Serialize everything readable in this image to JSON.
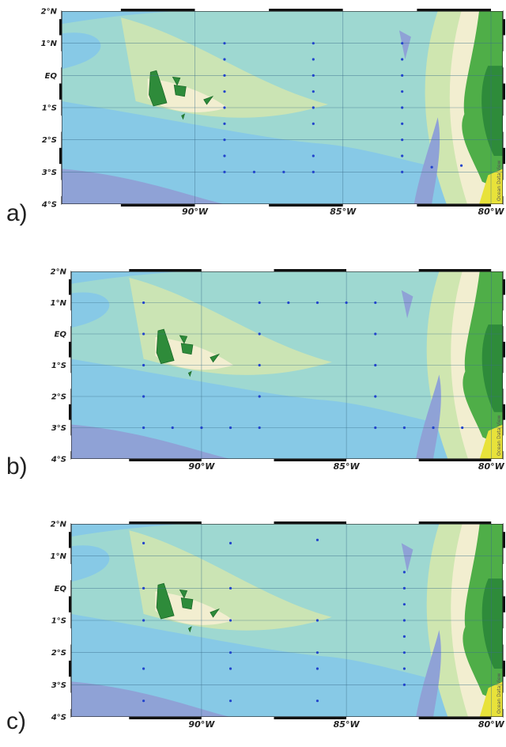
{
  "lat_labels": [
    "2°N",
    "1°N",
    "EQ",
    "1°S",
    "2°S",
    "3°S",
    "4°S"
  ],
  "lon_labels": [
    "90°W",
    "85°W",
    "80°W"
  ],
  "credit": "Ocean Data View",
  "colors": {
    "deep": "#8fa2d6",
    "mid": "#87c9e6",
    "shallow": "#9fd9d0",
    "green_light": "#cfe6b0",
    "cream": "#f2eed0",
    "land_dark": "#2e8b3a",
    "land_mid": "#4fae48",
    "land_light": "#8fcf6a",
    "yellow": "#e8e23a",
    "station": "#2244cc"
  },
  "panels": [
    {
      "label": "a)",
      "stations": [
        [
          -89,
          1
        ],
        [
          -89,
          0.5
        ],
        [
          -89,
          0
        ],
        [
          -89,
          -0.5
        ],
        [
          -89,
          -1
        ],
        [
          -89,
          -1.5
        ],
        [
          -89,
          -2
        ],
        [
          -89,
          -2.5
        ],
        [
          -89,
          -3
        ],
        [
          -86,
          1
        ],
        [
          -86,
          0.5
        ],
        [
          -86,
          0
        ],
        [
          -86,
          -0.5
        ],
        [
          -86,
          -1
        ],
        [
          -86,
          -1.5
        ],
        [
          -86,
          -2.5
        ],
        [
          -86,
          -3
        ],
        [
          -83,
          1
        ],
        [
          -83,
          0.5
        ],
        [
          -83,
          0
        ],
        [
          -83,
          -0.5
        ],
        [
          -83,
          -1
        ],
        [
          -83,
          -1.5
        ],
        [
          -83,
          -2
        ],
        [
          -83,
          -2.5
        ],
        [
          -83,
          -3
        ],
        [
          -88,
          -3
        ],
        [
          -87,
          -3
        ],
        [
          -82,
          -2.85
        ],
        [
          -81,
          -2.8
        ]
      ]
    },
    {
      "label": "b)",
      "stations": [
        [
          -92,
          1
        ],
        [
          -92,
          0
        ],
        [
          -92,
          -1
        ],
        [
          -92,
          -2
        ],
        [
          -92,
          -3
        ],
        [
          -88,
          1
        ],
        [
          -88,
          0
        ],
        [
          -88,
          -1
        ],
        [
          -88,
          -2
        ],
        [
          -88,
          -3
        ],
        [
          -87,
          1
        ],
        [
          -86,
          1
        ],
        [
          -85,
          1
        ],
        [
          -84,
          1
        ],
        [
          -84,
          0
        ],
        [
          -84,
          -1
        ],
        [
          -84,
          -2
        ],
        [
          -84,
          -3
        ],
        [
          -91,
          -3
        ],
        [
          -90,
          -3
        ],
        [
          -89,
          -3
        ],
        [
          -83,
          -3
        ],
        [
          -82,
          -3
        ],
        [
          -81,
          -3
        ]
      ]
    },
    {
      "label": "c)",
      "stations": [
        [
          -92,
          1.4
        ],
        [
          -92,
          0
        ],
        [
          -92,
          -1
        ],
        [
          -92,
          -2.5
        ],
        [
          -92,
          -3.5
        ],
        [
          -89,
          1.4
        ],
        [
          -89,
          0
        ],
        [
          -89,
          -1
        ],
        [
          -89,
          -2
        ],
        [
          -89,
          -2.5
        ],
        [
          -89,
          -3.5
        ],
        [
          -86,
          1.5
        ],
        [
          -86,
          -1
        ],
        [
          -86,
          -2
        ],
        [
          -86,
          -2.5
        ],
        [
          -86,
          -3.5
        ],
        [
          -83,
          0.5
        ],
        [
          -83,
          0
        ],
        [
          -83,
          -0.5
        ],
        [
          -83,
          -1
        ],
        [
          -83,
          -1.5
        ],
        [
          -83,
          -2
        ],
        [
          -83,
          -2.5
        ],
        [
          -83,
          -3
        ]
      ]
    }
  ]
}
